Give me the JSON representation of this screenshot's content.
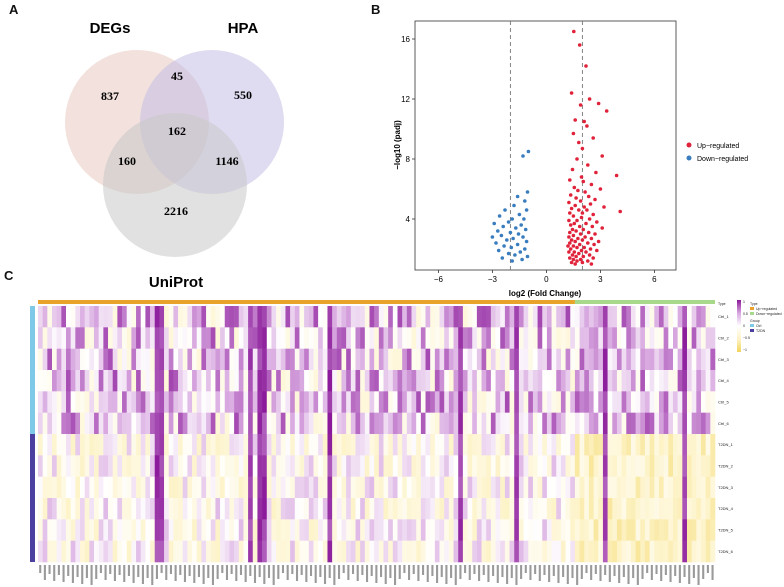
{
  "panels": {
    "a": "A",
    "b": "B",
    "c": "C"
  },
  "chart_data": [
    {
      "type": "venn",
      "sets": [
        {
          "name": "DEGs",
          "color": "#e8c8c0"
        },
        {
          "name": "HPA",
          "color": "#c4c0e6"
        },
        {
          "name": "UniProt",
          "color": "#c8c8c8"
        }
      ],
      "regions": {
        "degs_only": 837,
        "degs_hpa": 45,
        "hpa_only": 550,
        "all_three": 162,
        "degs_uniprot": 160,
        "hpa_uniprot": 1146,
        "uniprot_only": 2216
      }
    },
    {
      "type": "scatter",
      "xlabel": "log2 (Fold Change)",
      "ylabel": "−log10 (padj)",
      "xlim": [
        -7.3,
        7.2
      ],
      "ylim": [
        0.6,
        17.2
      ],
      "xticks": [
        -6,
        -3,
        0,
        3,
        6
      ],
      "yticks": [
        4,
        8,
        12,
        16
      ],
      "vlines": [
        -2,
        2
      ],
      "legend_position": "right",
      "series": [
        {
          "name": "Up−regulated",
          "color": "#e0233a",
          "points": [
            [
              1.52,
              16.5
            ],
            [
              1.85,
              15.6
            ],
            [
              2.2,
              14.2
            ],
            [
              1.4,
              12.4
            ],
            [
              2.4,
              12.0
            ],
            [
              2.9,
              11.7
            ],
            [
              1.9,
              11.6
            ],
            [
              3.35,
              11.2
            ],
            [
              1.6,
              10.6
            ],
            [
              2.1,
              10.5
            ],
            [
              2.25,
              10.2
            ],
            [
              1.5,
              9.7
            ],
            [
              2.6,
              9.4
            ],
            [
              1.8,
              9.1
            ],
            [
              2.0,
              8.7
            ],
            [
              3.1,
              8.2
            ],
            [
              1.7,
              8.0
            ],
            [
              2.3,
              7.6
            ],
            [
              1.45,
              7.3
            ],
            [
              2.75,
              7.1
            ],
            [
              3.9,
              6.9
            ],
            [
              1.95,
              6.8
            ],
            [
              1.3,
              6.6
            ],
            [
              2.05,
              6.5
            ],
            [
              2.5,
              6.3
            ],
            [
              1.55,
              6.1
            ],
            [
              3.0,
              6.0
            ],
            [
              1.75,
              5.9
            ],
            [
              2.15,
              5.8
            ],
            [
              1.35,
              5.6
            ],
            [
              2.35,
              5.5
            ],
            [
              1.65,
              5.4
            ],
            [
              2.7,
              5.3
            ],
            [
              1.9,
              5.2
            ],
            [
              1.25,
              5.1
            ],
            [
              2.45,
              5.0
            ],
            [
              1.6,
              4.9
            ],
            [
              2.1,
              4.8
            ],
            [
              3.2,
              4.8
            ],
            [
              1.4,
              4.7
            ],
            [
              2.25,
              4.6
            ],
            [
              1.8,
              4.6
            ],
            [
              4.1,
              4.5
            ],
            [
              1.3,
              4.4
            ],
            [
              2.0,
              4.4
            ],
            [
              2.6,
              4.3
            ],
            [
              1.5,
              4.2
            ],
            [
              1.95,
              4.1
            ],
            [
              2.4,
              4.0
            ],
            [
              1.7,
              3.9
            ],
            [
              1.25,
              3.9
            ],
            [
              2.8,
              3.8
            ],
            [
              1.55,
              3.7
            ],
            [
              2.2,
              3.7
            ],
            [
              1.35,
              3.6
            ],
            [
              1.85,
              3.5
            ],
            [
              2.55,
              3.5
            ],
            [
              3.1,
              3.4
            ],
            [
              1.45,
              3.3
            ],
            [
              2.05,
              3.3
            ],
            [
              1.65,
              3.2
            ],
            [
              1.3,
              3.1
            ],
            [
              2.35,
              3.1
            ],
            [
              1.9,
              3.0
            ],
            [
              2.7,
              3.0
            ],
            [
              1.5,
              2.9
            ],
            [
              2.15,
              2.8
            ],
            [
              1.25,
              2.8
            ],
            [
              1.75,
              2.7
            ],
            [
              2.5,
              2.7
            ],
            [
              1.4,
              2.6
            ],
            [
              2.0,
              2.6
            ],
            [
              2.9,
              2.5
            ],
            [
              1.6,
              2.5
            ],
            [
              1.3,
              2.4
            ],
            [
              2.3,
              2.4
            ],
            [
              1.85,
              2.3
            ],
            [
              2.65,
              2.3
            ],
            [
              1.5,
              2.2
            ],
            [
              1.2,
              2.2
            ],
            [
              2.1,
              2.1
            ],
            [
              1.7,
              2.1
            ],
            [
              2.45,
              2.0
            ],
            [
              1.35,
              2.0
            ],
            [
              1.95,
              1.9
            ],
            [
              2.8,
              1.9
            ],
            [
              1.55,
              1.8
            ],
            [
              1.25,
              1.8
            ],
            [
              2.2,
              1.8
            ],
            [
              1.8,
              1.7
            ],
            [
              1.45,
              1.6
            ],
            [
              2.4,
              1.6
            ],
            [
              1.65,
              1.5
            ],
            [
              2.05,
              1.5
            ],
            [
              1.3,
              1.4
            ],
            [
              2.6,
              1.4
            ],
            [
              1.9,
              1.3
            ],
            [
              1.5,
              1.3
            ],
            [
              2.3,
              1.2
            ],
            [
              1.7,
              1.2
            ],
            [
              1.4,
              1.1
            ],
            [
              2.0,
              1.1
            ],
            [
              2.5,
              1.0
            ],
            [
              1.6,
              1.0
            ]
          ]
        },
        {
          "name": "Down−regulated",
          "color": "#3a7dbf",
          "points": [
            [
              -1.0,
              8.5
            ],
            [
              -1.3,
              8.2
            ],
            [
              -1.05,
              5.8
            ],
            [
              -1.6,
              5.5
            ],
            [
              -1.2,
              5.2
            ],
            [
              -1.8,
              4.9
            ],
            [
              -2.3,
              4.6
            ],
            [
              -1.1,
              4.6
            ],
            [
              -1.5,
              4.3
            ],
            [
              -2.6,
              4.2
            ],
            [
              -1.9,
              4.0
            ],
            [
              -1.25,
              4.0
            ],
            [
              -2.1,
              3.8
            ],
            [
              -2.9,
              3.7
            ],
            [
              -1.4,
              3.6
            ],
            [
              -2.4,
              3.5
            ],
            [
              -1.7,
              3.4
            ],
            [
              -1.15,
              3.3
            ],
            [
              -2.7,
              3.2
            ],
            [
              -2.0,
              3.1
            ],
            [
              -1.55,
              3.0
            ],
            [
              -2.5,
              2.9
            ],
            [
              -1.3,
              2.8
            ],
            [
              -3.0,
              2.8
            ],
            [
              -1.85,
              2.7
            ],
            [
              -2.2,
              2.6
            ],
            [
              -1.1,
              2.5
            ],
            [
              -2.8,
              2.4
            ],
            [
              -1.6,
              2.3
            ],
            [
              -2.35,
              2.2
            ],
            [
              -1.95,
              2.1
            ],
            [
              -1.2,
              2.0
            ],
            [
              -2.65,
              1.9
            ],
            [
              -1.45,
              1.8
            ],
            [
              -2.1,
              1.7
            ],
            [
              -1.75,
              1.6
            ],
            [
              -1.05,
              1.5
            ],
            [
              -2.45,
              1.4
            ],
            [
              -1.35,
              1.3
            ],
            [
              -1.9,
              1.2
            ]
          ]
        }
      ]
    },
    {
      "type": "heatmap",
      "type_legend_title": "Type",
      "type_legend": [
        "Up−regulated",
        "Down−regulated"
      ],
      "type_colors": [
        "#e8a32a",
        "#a8d88a"
      ],
      "group_legend_title": "Group",
      "group_legend": [
        "Ctrl",
        "T2DN"
      ],
      "group_colors": [
        "#7ec8e8",
        "#4b3fa0"
      ],
      "color_scale": {
        "ticks": [
          "1",
          "0.5",
          "0",
          "−0.5",
          "−1"
        ],
        "colors": [
          "#8b1a9a",
          "#d8a8e0",
          "#ffffff",
          "#fdf3c8",
          "#f2d45a"
        ]
      },
      "rows": [
        "Ctrl_1",
        "Ctrl_2",
        "Ctrl_3",
        "Ctrl_4",
        "Ctrl_5",
        "Ctrl_6",
        "T2DN_1",
        "T2DN_2",
        "T2DN_3",
        "T2DN_4",
        "T2DN_5",
        "T2DN_6"
      ],
      "n_columns": 145,
      "n_up_columns": 115
    }
  ]
}
